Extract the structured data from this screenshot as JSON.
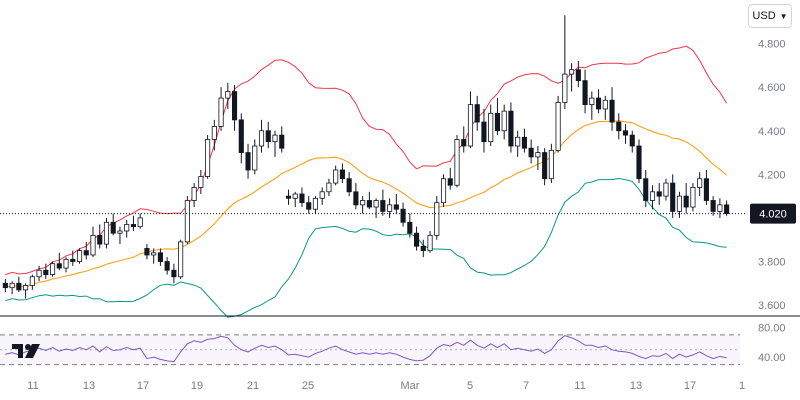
{
  "currency_selector": {
    "label": "USD",
    "icon": "chevron-down-icon"
  },
  "logo": {
    "name": "tradingview-logo"
  },
  "colors": {
    "upper_band": "#f23645",
    "basis": "#ff9800",
    "lower_band": "#089981",
    "rsi_line": "#7e57c2",
    "candle": "#131722",
    "price_tag": "#131722"
  },
  "chart_data": {
    "type": "candlestick",
    "price_axis": {
      "ticks": [
        "4.800",
        "4.600",
        "4.400",
        "4.200",
        "3.800",
        "3.600"
      ],
      "range": [
        3.55,
        5.0
      ]
    },
    "last_price_label": "4.020",
    "last_price": 4.02,
    "x_ticks": [
      "11",
      "13",
      "17",
      "19",
      "21",
      "25",
      "Mar",
      "5",
      "7",
      "11",
      "13",
      "17",
      "1"
    ],
    "indicators": [
      "Bollinger Bands (upper, basis, lower)",
      "RSI"
    ],
    "candles": [
      [
        3.7,
        3.72,
        3.66,
        3.68
      ],
      [
        3.68,
        3.71,
        3.65,
        3.7
      ],
      [
        3.7,
        3.73,
        3.66,
        3.67
      ],
      [
        3.67,
        3.7,
        3.63,
        3.69
      ],
      [
        3.69,
        3.74,
        3.67,
        3.73
      ],
      [
        3.73,
        3.78,
        3.71,
        3.76
      ],
      [
        3.76,
        3.79,
        3.72,
        3.74
      ],
      [
        3.74,
        3.8,
        3.73,
        3.79
      ],
      [
        3.79,
        3.84,
        3.76,
        3.77
      ],
      [
        3.77,
        3.82,
        3.75,
        3.81
      ],
      [
        3.81,
        3.85,
        3.78,
        3.8
      ],
      [
        3.8,
        3.86,
        3.79,
        3.85
      ],
      [
        3.85,
        3.89,
        3.81,
        3.83
      ],
      [
        3.83,
        3.96,
        3.82,
        3.92
      ],
      [
        3.92,
        3.97,
        3.86,
        3.88
      ],
      [
        3.88,
        4.0,
        3.86,
        3.98
      ],
      [
        3.98,
        4.02,
        3.92,
        3.93
      ],
      [
        3.93,
        3.96,
        3.88,
        3.94
      ],
      [
        3.94,
        3.99,
        3.91,
        3.97
      ],
      [
        3.97,
        4.01,
        3.94,
        3.96
      ],
      [
        3.96,
        4.02,
        3.95,
        4.0
      ],
      [
        3.86,
        3.88,
        3.81,
        3.83
      ],
      [
        3.83,
        3.86,
        3.79,
        3.84
      ],
      [
        3.84,
        3.86,
        3.78,
        3.8
      ],
      [
        3.8,
        3.82,
        3.74,
        3.76
      ],
      [
        3.76,
        3.79,
        3.7,
        3.73
      ],
      [
        3.73,
        3.9,
        3.72,
        3.89
      ],
      [
        3.89,
        4.1,
        3.88,
        4.08
      ],
      [
        4.08,
        4.16,
        4.05,
        4.14
      ],
      [
        4.14,
        4.22,
        4.11,
        4.19
      ],
      [
        4.19,
        4.38,
        4.18,
        4.36
      ],
      [
        4.36,
        4.45,
        4.31,
        4.42
      ],
      [
        4.42,
        4.6,
        4.4,
        4.55
      ],
      [
        4.55,
        4.62,
        4.5,
        4.58
      ],
      [
        4.58,
        4.61,
        4.4,
        4.45
      ],
      [
        4.45,
        4.48,
        4.25,
        4.3
      ],
      [
        4.3,
        4.34,
        4.18,
        4.22
      ],
      [
        4.22,
        4.36,
        4.2,
        4.33
      ],
      [
        4.33,
        4.45,
        4.3,
        4.4
      ],
      [
        4.4,
        4.44,
        4.32,
        4.35
      ],
      [
        4.35,
        4.4,
        4.28,
        4.38
      ],
      [
        4.38,
        4.42,
        4.3,
        4.32
      ],
      [
        4.1,
        4.13,
        4.06,
        4.09
      ],
      [
        4.09,
        4.12,
        4.05,
        4.11
      ],
      [
        4.11,
        4.14,
        4.05,
        4.07
      ],
      [
        4.07,
        4.1,
        4.02,
        4.04
      ],
      [
        4.04,
        4.1,
        4.02,
        4.09
      ],
      [
        4.09,
        4.14,
        4.06,
        4.12
      ],
      [
        4.12,
        4.18,
        4.1,
        4.16
      ],
      [
        4.16,
        4.24,
        4.15,
        4.22
      ],
      [
        4.22,
        4.25,
        4.16,
        4.18
      ],
      [
        4.18,
        4.21,
        4.1,
        4.12
      ],
      [
        4.12,
        4.16,
        4.04,
        4.06
      ],
      [
        4.06,
        4.1,
        4.02,
        4.08
      ],
      [
        4.08,
        4.12,
        4.04,
        4.05
      ],
      [
        4.05,
        4.09,
        4.0,
        4.08
      ],
      [
        4.08,
        4.13,
        4.01,
        4.03
      ],
      [
        4.03,
        4.09,
        4.0,
        4.06
      ],
      [
        4.06,
        4.11,
        4.02,
        4.04
      ],
      [
        4.04,
        4.07,
        3.96,
        3.98
      ],
      [
        3.98,
        4.02,
        3.91,
        3.93
      ],
      [
        3.93,
        3.96,
        3.85,
        3.87
      ],
      [
        3.87,
        3.9,
        3.82,
        3.85
      ],
      [
        3.85,
        3.94,
        3.84,
        3.92
      ],
      [
        3.92,
        4.1,
        3.9,
        4.07
      ],
      [
        4.07,
        4.2,
        4.05,
        4.18
      ],
      [
        4.18,
        4.23,
        4.13,
        4.15
      ],
      [
        4.15,
        4.38,
        4.14,
        4.36
      ],
      [
        4.36,
        4.42,
        4.3,
        4.33
      ],
      [
        4.33,
        4.58,
        4.32,
        4.52
      ],
      [
        4.52,
        4.56,
        4.4,
        4.44
      ],
      [
        4.44,
        4.5,
        4.3,
        4.35
      ],
      [
        4.35,
        4.52,
        4.33,
        4.48
      ],
      [
        4.48,
        4.55,
        4.38,
        4.4
      ],
      [
        4.4,
        4.52,
        4.36,
        4.49
      ],
      [
        4.49,
        4.53,
        4.3,
        4.33
      ],
      [
        4.33,
        4.4,
        4.28,
        4.37
      ],
      [
        4.37,
        4.41,
        4.3,
        4.32
      ],
      [
        4.32,
        4.36,
        4.25,
        4.28
      ],
      [
        4.28,
        4.33,
        4.22,
        4.3
      ],
      [
        4.3,
        4.32,
        4.15,
        4.18
      ],
      [
        4.18,
        4.34,
        4.16,
        4.31
      ],
      [
        4.31,
        4.56,
        4.3,
        4.53
      ],
      [
        4.53,
        4.93,
        4.5,
        4.66
      ],
      [
        4.66,
        4.71,
        4.58,
        4.68
      ],
      [
        4.68,
        4.72,
        4.6,
        4.63
      ],
      [
        4.63,
        4.68,
        4.48,
        4.52
      ],
      [
        4.52,
        4.58,
        4.45,
        4.55
      ],
      [
        4.55,
        4.59,
        4.48,
        4.5
      ],
      [
        4.5,
        4.56,
        4.45,
        4.54
      ],
      [
        4.54,
        4.6,
        4.4,
        4.44
      ],
      [
        4.44,
        4.48,
        4.36,
        4.4
      ],
      [
        4.4,
        4.43,
        4.34,
        4.38
      ],
      [
        4.38,
        4.4,
        4.3,
        4.33
      ],
      [
        4.33,
        4.36,
        4.16,
        4.18
      ],
      [
        4.18,
        4.22,
        4.05,
        4.08
      ],
      [
        4.08,
        4.15,
        4.04,
        4.12
      ],
      [
        4.12,
        4.16,
        4.06,
        4.1
      ],
      [
        4.1,
        4.18,
        4.08,
        4.16
      ],
      [
        4.16,
        4.2,
        4.0,
        4.03
      ],
      [
        4.03,
        4.12,
        4.0,
        4.1
      ],
      [
        4.1,
        4.16,
        4.02,
        4.05
      ],
      [
        4.05,
        4.16,
        4.03,
        4.14
      ],
      [
        4.14,
        4.21,
        4.1,
        4.18
      ],
      [
        4.18,
        4.22,
        4.06,
        4.08
      ],
      [
        4.08,
        4.1,
        4.01,
        4.03
      ],
      [
        4.03,
        4.09,
        4.0,
        4.06
      ],
      [
        4.06,
        4.08,
        4.01,
        4.02
      ]
    ],
    "rsi_axis": {
      "ticks": [
        "80.00",
        "40.00"
      ],
      "range": [
        20,
        90
      ],
      "bands": [
        30,
        70
      ],
      "mid": 50
    },
    "rsi_values": [
      44,
      46,
      43,
      47,
      50,
      52,
      49,
      53,
      48,
      51,
      49,
      53,
      50,
      55,
      47,
      54,
      49,
      50,
      53,
      50,
      52,
      38,
      40,
      37,
      35,
      34,
      47,
      58,
      62,
      60,
      64,
      65,
      68,
      66,
      56,
      50,
      47,
      52,
      56,
      53,
      55,
      50,
      43,
      44,
      42,
      40,
      45,
      48,
      52,
      55,
      50,
      47,
      44,
      46,
      44,
      46,
      44,
      46,
      44,
      40,
      37,
      35,
      36,
      42,
      52,
      57,
      55,
      60,
      56,
      63,
      56,
      52,
      58,
      53,
      58,
      50,
      52,
      50,
      48,
      51,
      45,
      50,
      62,
      69,
      66,
      62,
      56,
      56,
      53,
      55,
      50,
      48,
      47,
      45,
      41,
      38,
      42,
      41,
      45,
      38,
      44,
      40,
      43,
      47,
      42,
      38,
      41,
      39
    ]
  }
}
